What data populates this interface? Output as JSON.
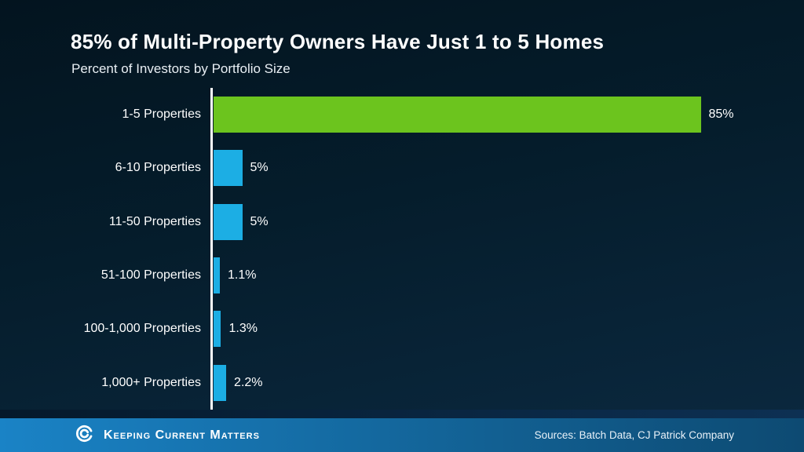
{
  "header": {
    "title": "85% of Multi-Property Owners Have Just 1 to 5 Homes",
    "subtitle": "Percent of Investors by Portfolio Size"
  },
  "chart_data": {
    "type": "bar",
    "orientation": "horizontal",
    "title": "85% of Multi-Property Owners Have Just 1 to 5 Homes",
    "subtitle": "Percent of Investors by Portfolio Size",
    "categories": [
      "1-5 Properties",
      "6-10 Properties",
      "11-50 Properties",
      "51-100 Properties",
      "100-1,000 Properties",
      "1,000+ Properties"
    ],
    "values": [
      85,
      5,
      5,
      1.1,
      1.3,
      2.2
    ],
    "value_labels": [
      "85%",
      "5%",
      "5%",
      "1.1%",
      "1.3%",
      "2.2%"
    ],
    "unit": "%",
    "xlabel": "",
    "ylabel": "",
    "xlim": [
      0,
      100
    ],
    "grid": false,
    "legend": false,
    "highlight_index": 0,
    "colors": {
      "highlight_bar": "#6cc41e",
      "bar": "#1caee4",
      "axis": "#ffffff",
      "background": "#051c2a",
      "text": "#ffffff"
    }
  },
  "footer": {
    "brand": "Keeping Current Matters",
    "sources": "Sources: Batch Data, CJ Patrick Company",
    "colors": {
      "band_left": "#1a83c6",
      "band_right": "#0d4a72"
    }
  }
}
